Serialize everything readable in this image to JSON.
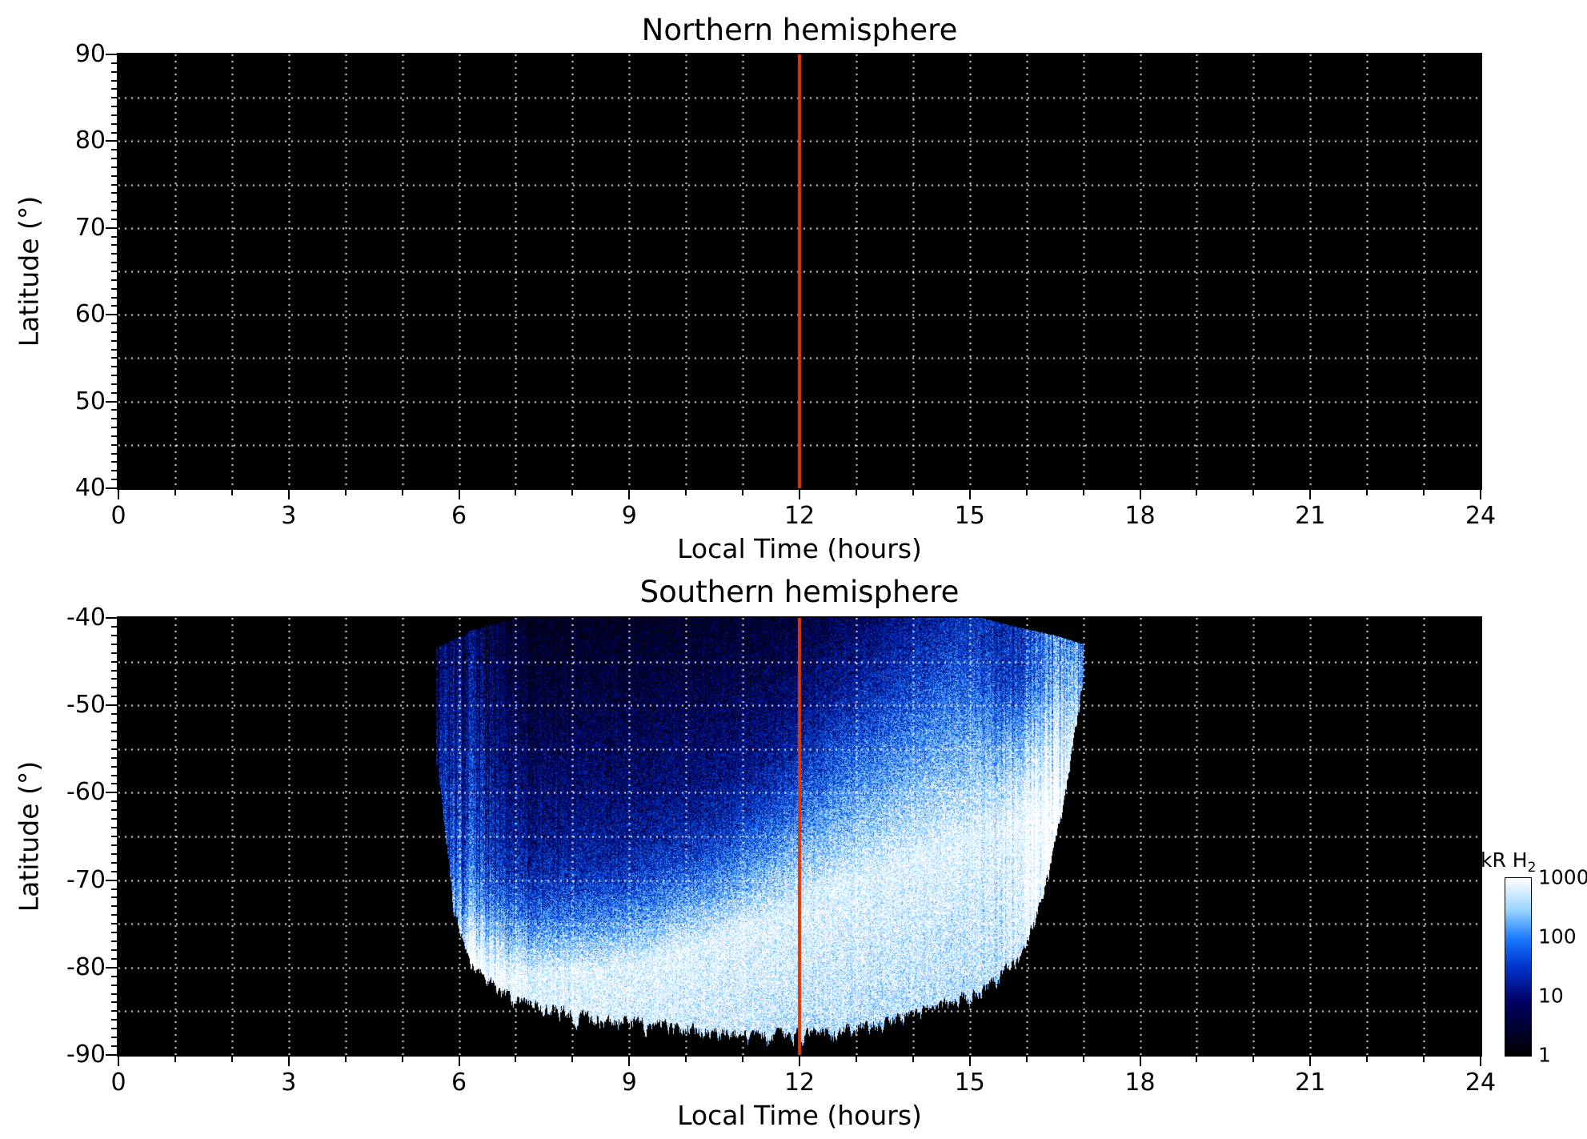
{
  "figure": {
    "background": "#ffffff",
    "plot_background": "#000000",
    "grid_color": "#ffffff",
    "grid_style": "dotted",
    "noon_line_color": "#e03800",
    "noon_line_x": 12
  },
  "chart_data": [
    {
      "type": "heatmap",
      "title": "Northern hemisphere",
      "xlabel": "Local Time (hours)",
      "ylabel": "Latitude (°)",
      "xlim": [
        0,
        24
      ],
      "ylim": [
        40,
        90
      ],
      "xtick_values": [
        0,
        3,
        6,
        9,
        12,
        15,
        18,
        21,
        24
      ],
      "xtick_labels": [
        "0",
        "3",
        "6",
        "9",
        "12",
        "15",
        "18",
        "21",
        "24"
      ],
      "ytick_values": [
        90,
        80,
        70,
        60,
        50,
        40
      ],
      "ytick_labels": [
        "90",
        "80",
        "70",
        "60",
        "50",
        "40"
      ],
      "grid_x_step_hours": 1,
      "grid_y_step_deg": 5,
      "noon_line_x": 12,
      "emission": {
        "present": false,
        "note": "No H2 emission above 1 kR detected; panel is entirely black."
      }
    },
    {
      "type": "heatmap",
      "title": "Southern hemisphere",
      "xlabel": "Local Time (hours)",
      "ylabel": "Latitude (°)",
      "xlim": [
        0,
        24
      ],
      "ylim": [
        -90,
        -40
      ],
      "xtick_values": [
        0,
        3,
        6,
        9,
        12,
        15,
        18,
        21,
        24
      ],
      "xtick_labels": [
        "0",
        "3",
        "6",
        "9",
        "12",
        "15",
        "18",
        "21",
        "24"
      ],
      "ytick_values": [
        -40,
        -50,
        -60,
        -70,
        -80,
        -90
      ],
      "ytick_labels": [
        "-40",
        "-50",
        "-60",
        "-70",
        "-80",
        "-90"
      ],
      "grid_x_step_hours": 1,
      "grid_y_step_deg": 5,
      "noon_line_x": 12,
      "emission": {
        "present": true,
        "units": "kR H2",
        "scale": "log",
        "intensity_range": [
          1,
          1000
        ],
        "observed_local_time_range": [
          5.6,
          17.0
        ],
        "top_boundary": [
          [
            5.6,
            -43.5
          ],
          [
            6.2,
            -41.5
          ],
          [
            7.0,
            -40
          ],
          [
            15.2,
            -40
          ],
          [
            15.8,
            -41
          ],
          [
            16.5,
            -42
          ],
          [
            17.0,
            -43
          ]
        ],
        "bottom_boundary": [
          [
            5.6,
            -55
          ],
          [
            5.9,
            -72
          ],
          [
            6.2,
            -79
          ],
          [
            7.0,
            -83
          ],
          [
            8.5,
            -85
          ],
          [
            10.0,
            -86
          ],
          [
            11.0,
            -87
          ],
          [
            12.5,
            -86.5
          ],
          [
            13.5,
            -85.5
          ],
          [
            14.5,
            -83.5
          ],
          [
            15.3,
            -81.5
          ],
          [
            15.9,
            -78
          ],
          [
            16.3,
            -71
          ],
          [
            16.7,
            -59
          ],
          [
            17.0,
            -46
          ]
        ],
        "peak_band_centerline": [
          [
            5.6,
            -80
          ],
          [
            7.0,
            -81
          ],
          [
            8.5,
            -80.5
          ],
          [
            9.5,
            -79
          ],
          [
            10.5,
            -77
          ],
          [
            11.5,
            -74.5
          ],
          [
            12.5,
            -71.5
          ],
          [
            13.5,
            -69
          ],
          [
            14.5,
            -66.5
          ],
          [
            15.5,
            -64.5
          ],
          [
            16.3,
            -63
          ],
          [
            17.0,
            -63
          ]
        ],
        "falloff_sigma_deg": [
          [
            5.6,
            2.2
          ],
          [
            9.0,
            2.5
          ],
          [
            11.0,
            3.0
          ],
          [
            13.0,
            5.0
          ],
          [
            15.0,
            6.5
          ],
          [
            17.0,
            6.5
          ]
        ],
        "bright_edge_columns_hours": [
          6.1,
          16.55
        ],
        "note": "Auroral H2 emission between ~05:36 and ~17:00 LT; bright saturated (~1000 kR) band along and below the peak centerline, speckled faint (1-10 kR) blue emission toward -40 latitude, dark elsewhere."
      }
    }
  ],
  "colorbar": {
    "label": "kR H",
    "label_sub": "2",
    "scale": "log",
    "range": [
      1,
      1000
    ],
    "tick_values": [
      1000,
      100,
      10,
      1
    ],
    "tick_labels": [
      "1000",
      "100",
      "10",
      "1"
    ],
    "colormap": [
      [
        0,
        "#000000"
      ],
      [
        0.3,
        "#000060"
      ],
      [
        0.5,
        "#0033cc"
      ],
      [
        0.66,
        "#1a7aff"
      ],
      [
        0.82,
        "#99d6ff"
      ],
      [
        1,
        "#ffffff"
      ]
    ]
  }
}
